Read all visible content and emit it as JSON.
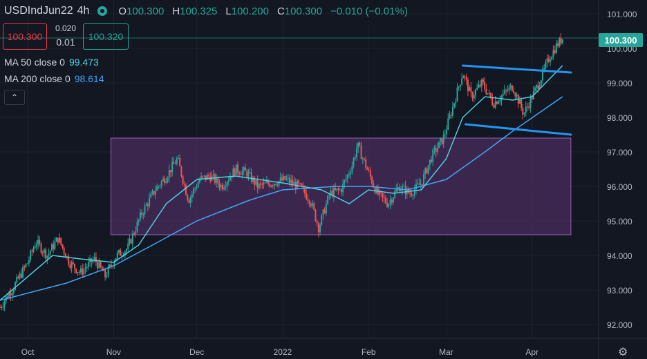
{
  "header": {
    "symbol": "USDIndJun22",
    "interval": "4h",
    "open_label": "O",
    "open": "100.300",
    "high_label": "H",
    "high": "100.325",
    "low_label": "L",
    "low": "100.200",
    "close_label": "C",
    "close": "100.300",
    "change": "−0.010 (−0.01%)"
  },
  "trade": {
    "sell": "100.300",
    "spread_top": "0.020",
    "spread_bottom": "0.01",
    "buy": "100.320"
  },
  "indicators": [
    {
      "label": "MA 50 close 0",
      "value": "99.473",
      "color": "#4dd0e1"
    },
    {
      "label": "MA 200 close 0",
      "value": "98.614",
      "color": "#42a5f5"
    }
  ],
  "collapse_icon": "chevron-up-icon",
  "settings_icon": "gear-icon",
  "last_price_label": "100.300",
  "colors": {
    "up": "#26a69a",
    "down": "#ef5350",
    "ma50": "#4dd0e1",
    "ma200": "#42a5f5",
    "trendline": "#2196f3",
    "range_fill": "#4a2d5e",
    "range_border": "#9c5fb5"
  },
  "chart_data": {
    "type": "candlestick",
    "y_ticks": [
      "101.000",
      "100.000",
      "99.000",
      "98.000",
      "97.000",
      "96.000",
      "95.000",
      "94.000",
      "93.000",
      "92.000"
    ],
    "x_ticks": [
      "Oct",
      "Nov",
      "Dec",
      "2022",
      "Feb",
      "Mar",
      "Apr"
    ],
    "ylim": [
      91.6,
      101.4
    ],
    "x_domain": [
      "2021-09-21",
      "2022-04-25"
    ],
    "x_tick_dates": [
      "2021-10-01",
      "2021-11-01",
      "2021-12-01",
      "2022-01-01",
      "2022-02-01",
      "2022-03-01",
      "2022-04-01"
    ],
    "price_path": [
      [
        "2021-09-21",
        92.5
      ],
      [
        "2021-09-26",
        93.1
      ],
      [
        "2021-10-01",
        93.8
      ],
      [
        "2021-10-04",
        94.4
      ],
      [
        "2021-10-08",
        94.0
      ],
      [
        "2021-10-12",
        94.5
      ],
      [
        "2021-10-16",
        93.8
      ],
      [
        "2021-10-20",
        93.5
      ],
      [
        "2021-10-25",
        93.9
      ],
      [
        "2021-10-29",
        93.4
      ],
      [
        "2021-11-02",
        94.0
      ],
      [
        "2021-11-06",
        94.2
      ],
      [
        "2021-11-11",
        95.2
      ],
      [
        "2021-11-16",
        95.9
      ],
      [
        "2021-11-20",
        96.3
      ],
      [
        "2021-11-24",
        96.8
      ],
      [
        "2021-11-28",
        95.6
      ],
      [
        "2021-12-02",
        96.2
      ],
      [
        "2021-12-06",
        96.3
      ],
      [
        "2021-12-10",
        96.0
      ],
      [
        "2021-12-15",
        96.5
      ],
      [
        "2021-12-19",
        96.4
      ],
      [
        "2021-12-23",
        96.0
      ],
      [
        "2021-12-28",
        96.1
      ],
      [
        "2022-01-02",
        96.2
      ],
      [
        "2022-01-07",
        96.0
      ],
      [
        "2022-01-11",
        95.6
      ],
      [
        "2022-01-14",
        94.8
      ],
      [
        "2022-01-18",
        95.8
      ],
      [
        "2022-01-22",
        95.9
      ],
      [
        "2022-01-26",
        96.6
      ],
      [
        "2022-01-28",
        97.2
      ],
      [
        "2022-02-01",
        96.4
      ],
      [
        "2022-02-04",
        95.8
      ],
      [
        "2022-02-08",
        95.5
      ],
      [
        "2022-02-12",
        96.0
      ],
      [
        "2022-02-16",
        95.8
      ],
      [
        "2022-02-20",
        96.1
      ],
      [
        "2022-02-24",
        96.9
      ],
      [
        "2022-02-28",
        97.4
      ],
      [
        "2022-03-03",
        98.2
      ],
      [
        "2022-03-07",
        99.3
      ],
      [
        "2022-03-10",
        98.6
      ],
      [
        "2022-03-14",
        99.0
      ],
      [
        "2022-03-18",
        98.4
      ],
      [
        "2022-03-22",
        98.7
      ],
      [
        "2022-03-25",
        98.9
      ],
      [
        "2022-03-29",
        98.1
      ],
      [
        "2022-04-01",
        98.6
      ],
      [
        "2022-04-04",
        99.1
      ],
      [
        "2022-04-07",
        99.7
      ],
      [
        "2022-04-10",
        100.1
      ],
      [
        "2022-04-12",
        100.3
      ]
    ],
    "ma50_path": [
      [
        "2021-09-21",
        92.7
      ],
      [
        "2021-10-10",
        94.0
      ],
      [
        "2021-10-20",
        93.9
      ],
      [
        "2021-11-01",
        93.8
      ],
      [
        "2021-11-10",
        94.3
      ],
      [
        "2021-11-20",
        95.5
      ],
      [
        "2021-12-01",
        96.2
      ],
      [
        "2021-12-15",
        96.3
      ],
      [
        "2022-01-01",
        96.1
      ],
      [
        "2022-01-15",
        95.9
      ],
      [
        "2022-01-25",
        95.5
      ],
      [
        "2022-02-01",
        95.9
      ],
      [
        "2022-02-10",
        95.8
      ],
      [
        "2022-02-20",
        95.9
      ],
      [
        "2022-03-01",
        96.8
      ],
      [
        "2022-03-07",
        98.0
      ],
      [
        "2022-03-15",
        98.6
      ],
      [
        "2022-03-25",
        98.5
      ],
      [
        "2022-04-01",
        98.6
      ],
      [
        "2022-04-12",
        99.5
      ]
    ],
    "ma200_path": [
      [
        "2021-09-21",
        92.7
      ],
      [
        "2021-10-15",
        93.2
      ],
      [
        "2021-11-01",
        93.7
      ],
      [
        "2021-11-15",
        94.3
      ],
      [
        "2021-12-01",
        95.0
      ],
      [
        "2021-12-20",
        95.6
      ],
      [
        "2022-01-01",
        95.9
      ],
      [
        "2022-01-20",
        96.0
      ],
      [
        "2022-02-01",
        96.0
      ],
      [
        "2022-02-15",
        95.9
      ],
      [
        "2022-03-01",
        96.2
      ],
      [
        "2022-03-15",
        97.0
      ],
      [
        "2022-03-25",
        97.6
      ],
      [
        "2022-04-12",
        98.6
      ]
    ],
    "range_box": {
      "x_start": "2021-10-31",
      "x_end": "2022-04-15",
      "y_low": 94.6,
      "y_high": 97.4
    },
    "trendlines": [
      {
        "from": [
          "2022-03-07",
          99.5
        ],
        "to": [
          "2022-04-15",
          99.3
        ]
      },
      {
        "from": [
          "2022-03-08",
          97.8
        ],
        "to": [
          "2022-04-15",
          97.5
        ]
      }
    ],
    "last_price": 100.3
  }
}
